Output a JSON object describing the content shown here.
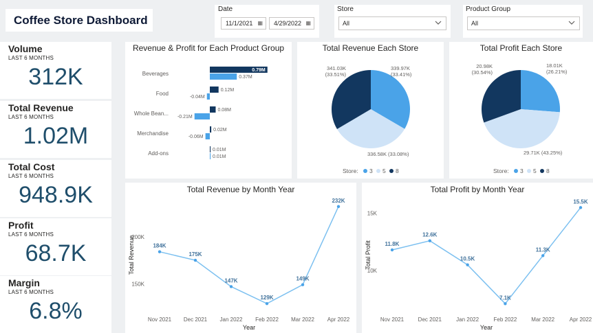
{
  "header": {
    "title": "Coffee Store Dashboard"
  },
  "filters": {
    "date": {
      "label": "Date",
      "start": "11/1/2021",
      "end": "4/29/2022"
    },
    "store": {
      "label": "Store",
      "value": "All"
    },
    "product_group": {
      "label": "Product Group",
      "value": "All"
    }
  },
  "kpis": [
    {
      "title": "Volume",
      "subtitle": "LAST 6 MONTHS",
      "value": "312K"
    },
    {
      "title": "Total Revenue",
      "subtitle": "LAST 6 MONTHS",
      "value": "1.02M"
    },
    {
      "title": "Total Cost",
      "subtitle": "LAST 6 MONTHS",
      "value": "948.9K"
    },
    {
      "title": "Profit",
      "subtitle": "LAST 6 MONTHS",
      "value": "68.7K"
    },
    {
      "title": "Margin",
      "subtitle": "LAST 6 MONTHS",
      "value": "6.8%"
    }
  ],
  "colors": {
    "dark": "#12375f",
    "mid": "#4aa3e8",
    "light": "#cfe3f7",
    "line": "#7cc0f0",
    "kpi": "#1f4e6b"
  },
  "chart_data": [
    {
      "type": "bar",
      "title": "Revenue & Profit for Each Product Group",
      "categories": [
        "Beverages",
        "Food",
        "Whole Bean...",
        "Merchandise",
        "Add-ons"
      ],
      "series": [
        {
          "values": [
            0.79,
            0.12,
            0.08,
            0.02,
            0.01
          ],
          "labels": [
            "0.79M",
            "0.12M",
            "0.08M",
            "0.02M",
            "0.01M"
          ]
        },
        {
          "values": [
            0.37,
            -0.04,
            -0.21,
            -0.06,
            0.01
          ],
          "labels": [
            "0.37M",
            "-0.04M",
            "-0.21M",
            "-0.06M",
            "0.01M"
          ]
        }
      ]
    },
    {
      "type": "pie",
      "title": "Total Revenue Each Store",
      "legend_title": "Store:",
      "legend_position": "bottom",
      "slices": [
        {
          "name": "3",
          "value": 339.97,
          "label": "339.97K",
          "pct": "(33.41%)",
          "color": "#4aa3e8"
        },
        {
          "name": "5",
          "value": 336.58,
          "label": "336.58K (33.08%)",
          "pct": "",
          "color": "#cfe3f7"
        },
        {
          "name": "8",
          "value": 341.03,
          "label": "341.03K",
          "pct": "(33.51%)",
          "color": "#12375f"
        }
      ]
    },
    {
      "type": "pie",
      "title": "Total Profit Each Store",
      "legend_title": "Store:",
      "legend_position": "bottom",
      "slices": [
        {
          "name": "3",
          "value": 18.01,
          "label": "18.01K",
          "pct": "(26.21%)",
          "color": "#4aa3e8"
        },
        {
          "name": "5",
          "value": 29.71,
          "label": "29.71K (43.25%)",
          "pct": "",
          "color": "#cfe3f7"
        },
        {
          "name": "8",
          "value": 20.98,
          "label": "20.98K",
          "pct": "(30.54%)",
          "color": "#12375f"
        }
      ]
    },
    {
      "type": "line",
      "title": "Total Revenue by Month Year",
      "xlabel": "Year",
      "ylabel": "Total Revenue",
      "x": [
        "Nov 2021",
        "Dec 2021",
        "Jan 2022",
        "Feb 2022",
        "Mar 2022",
        "Apr 2022"
      ],
      "values": [
        184,
        175,
        147,
        129,
        149,
        232
      ],
      "labels": [
        "184K",
        "175K",
        "147K",
        "129K",
        "149K",
        "232K"
      ],
      "yticks": [
        150,
        200
      ],
      "ytick_labels": [
        "150K",
        "200K"
      ],
      "ylim": [
        124,
        237
      ]
    },
    {
      "type": "line",
      "title": "Total Profit by Month Year",
      "xlabel": "Year",
      "ylabel": "Total Profit",
      "x": [
        "Nov 2021",
        "Dec 2021",
        "Jan 2022",
        "Feb 2022",
        "Mar 2022",
        "Apr 2022"
      ],
      "values": [
        11.8,
        12.6,
        10.5,
        7.1,
        11.3,
        15.5
      ],
      "labels": [
        "11.8K",
        "12.6K",
        "10.5K",
        "7.1K",
        "11.3K",
        "15.5K"
      ],
      "yticks": [
        10,
        15
      ],
      "ytick_labels": [
        "10K",
        "15K"
      ],
      "ylim": [
        6.7,
        16.0
      ]
    }
  ]
}
